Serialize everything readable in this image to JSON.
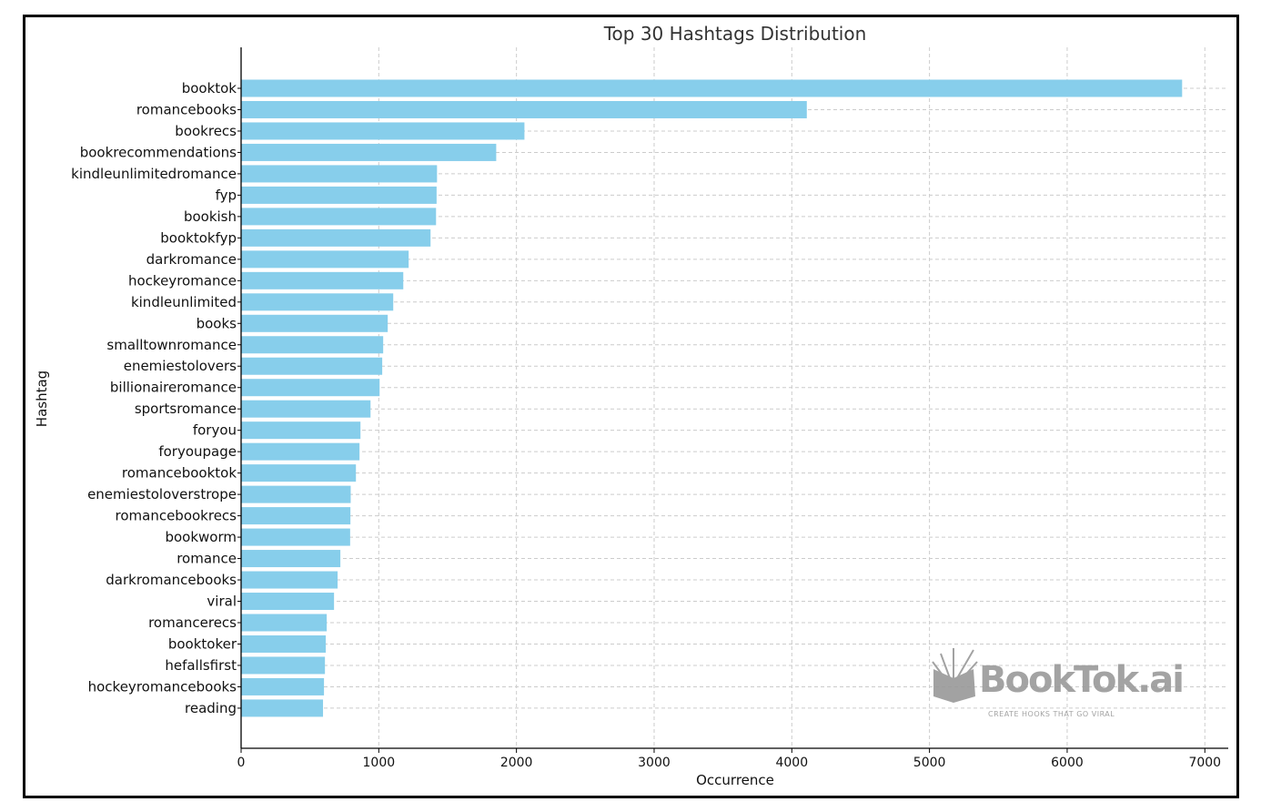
{
  "chart_data": {
    "type": "bar",
    "orientation": "horizontal",
    "title": "Top 30 Hashtags Distribution",
    "xlabel": "Occurrence",
    "ylabel": "Hashtag",
    "xlim": [
      0,
      7170
    ],
    "xticks": [
      0,
      1000,
      2000,
      3000,
      4000,
      5000,
      6000,
      7000
    ],
    "grid": true,
    "bar_color": "#87CEEB",
    "categories": [
      "booktok",
      "romancebooks",
      "bookrecs",
      "bookrecommendations",
      "kindleunlimitedromance",
      "fyp",
      "bookish",
      "booktokfyp",
      "darkromance",
      "hockeyromance",
      "kindleunlimited",
      "books",
      "smalltownromance",
      "enemiestolovers",
      "billionaireromance",
      "sportsromance",
      "foryou",
      "foryoupage",
      "romancebooktok",
      "enemiestoloverstrope",
      "romancebookrecs",
      "bookworm",
      "romance",
      "darkromancebooks",
      "viral",
      "romancerecs",
      "booktoker",
      "hefallsfirst",
      "hockeyromancebooks",
      "reading"
    ],
    "values": [
      6835,
      4109,
      2058,
      1853,
      1423,
      1420,
      1416,
      1376,
      1217,
      1178,
      1105,
      1065,
      1032,
      1025,
      1006,
      940,
      867,
      860,
      834,
      796,
      794,
      792,
      721,
      701,
      675,
      622,
      615,
      609,
      602,
      595
    ]
  },
  "watermark": {
    "brand": "BookTok.ai",
    "tagline": "CREATE HOOKS THAT GO VIRAL"
  }
}
